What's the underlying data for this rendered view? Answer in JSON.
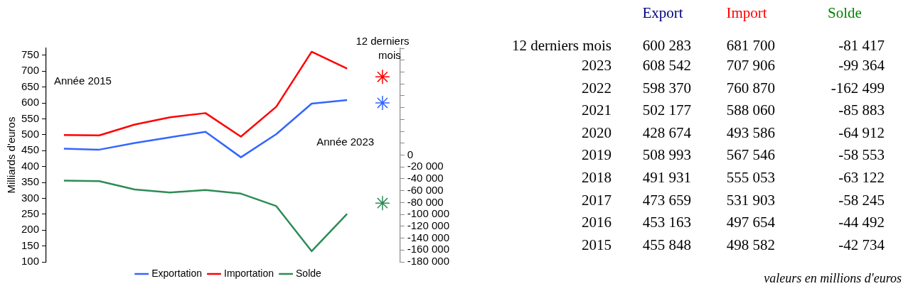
{
  "chart_data": [
    {
      "type": "line",
      "categories": [
        null,
        null,
        null,
        null,
        null,
        null,
        null,
        null,
        null,
        "12 derniers mois"
      ],
      "ylabel": "Milliards d'euros",
      "legend": "bottom",
      "ylim": [
        100,
        772
      ],
      "yticks": [
        100,
        150,
        200,
        250,
        300,
        350,
        400,
        450,
        500,
        550,
        600,
        650,
        700,
        750
      ],
      "y2lim": [
        -180000,
        180000
      ],
      "y2ticks": [
        {
          "value": -180000,
          "label": "-180 000"
        },
        {
          "value": -160000,
          "label": "-160 000"
        },
        {
          "value": -140000,
          "label": "-140 000"
        },
        {
          "value": -120000,
          "label": "-120 000"
        },
        {
          "value": -100000,
          "label": "-100 000"
        },
        {
          "value": -80000,
          "label": "-80 000"
        },
        {
          "value": -60000,
          "label": "-60 000"
        },
        {
          "value": -40000,
          "label": "-40 000"
        },
        {
          "value": -20000,
          "label": "-20 000"
        },
        0,
        {
          "value": 20000,
          "label": null
        },
        {
          "value": 40000,
          "label": null
        },
        {
          "value": 60000,
          "label": null
        },
        {
          "value": 80000,
          "label": null
        },
        {
          "value": 100000,
          "label": null
        },
        {
          "value": 120000,
          "label": null
        },
        {
          "value": 140000,
          "label": null
        },
        {
          "value": 160000,
          "label": null
        },
        {
          "value": 180000,
          "label": null
        }
      ],
      "series": [
        {
          "name": "Exportation",
          "color": "#3366ff",
          "values": [
            456,
            453,
            474,
            492,
            509,
            429,
            502,
            598,
            609,
            null
          ]
        },
        {
          "name": "Importation",
          "color": "#ff0000",
          "values": [
            499,
            498,
            532,
            555,
            568,
            494,
            588,
            761,
            708,
            null
          ]
        },
        {
          "name": "Solde",
          "color": "#2e8b57",
          "axis": "y2",
          "values": [
            -43000,
            -44000,
            -58000,
            -63000,
            -59000,
            -65000,
            -86000,
            -162000,
            -99000,
            null
          ]
        },
        {
          "type": "scatter",
          "color": "#3366ff",
          "marker": "cross",
          "values": [
            null,
            null,
            null,
            null,
            null,
            null,
            null,
            null,
            null,
            600
          ]
        },
        {
          "type": "scatter",
          "color": "#ff0000",
          "marker": "cross",
          "values": [
            null,
            null,
            null,
            null,
            null,
            null,
            null,
            null,
            null,
            682
          ]
        },
        {
          "type": "scatter",
          "color": "#2e8b57",
          "marker": "cross",
          "axis": "y2",
          "values": [
            null,
            null,
            null,
            null,
            null,
            null,
            null,
            null,
            null,
            -81000
          ]
        }
      ],
      "annotations": [
        "Année 2015",
        "Année 2023"
      ]
    },
    {
      "type": "heatmap",
      "categories": [
        "Export",
        "Import",
        "Solde"
      ],
      "y_categories": [
        "12 derniers mois",
        "2023",
        "2022",
        "2021",
        "2020",
        "2019",
        "2018",
        "2017",
        "2016",
        "2015"
      ],
      "data_labels": true,
      "cells": [
        [
          600283,
          681700,
          -81417
        ],
        [
          608542,
          707906,
          -99364
        ],
        [
          598370,
          760870,
          -162499
        ],
        [
          502177,
          588060,
          -85883
        ],
        [
          428674,
          493586,
          -64912
        ],
        [
          508993,
          567546,
          -58553
        ],
        [
          491931,
          555053,
          -63122
        ],
        [
          473659,
          531903,
          -58245
        ],
        [
          453163,
          497654,
          -44492
        ],
        [
          455848,
          498582,
          -42734
        ]
      ],
      "annotations": [
        "valeurs en millions d'euros"
      ]
    }
  ]
}
